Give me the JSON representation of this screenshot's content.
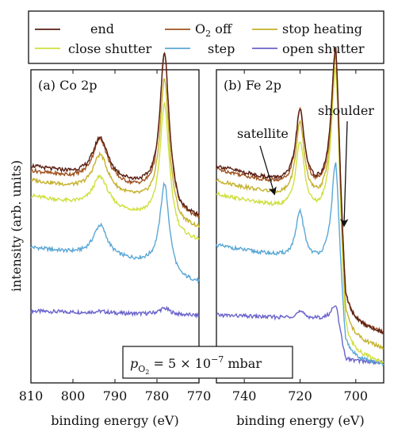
{
  "legend": {
    "placement": "top",
    "entries": [
      {
        "label": "end",
        "color": "#5a1f14"
      },
      {
        "label": "O₂ off",
        "label_sub": "2",
        "label_main": "O",
        "label_rest": " off",
        "color": "#a0521e"
      },
      {
        "label": "stop heating",
        "color": "#c5b12c"
      },
      {
        "label": "close shutter",
        "color": "#cfe03e"
      },
      {
        "label": "step",
        "color": "#5aa7d6"
      },
      {
        "label": "open shutter",
        "color": "#6a63cc"
      }
    ]
  },
  "ylabel": "intensity (arb. units)",
  "annotation": {
    "pressure_text_main": "p",
    "pressure_text_sub": "O",
    "pressure_text_sub2": "2",
    "pressure_text_rest": " = 5 × 10",
    "pressure_exp": "−7",
    "pressure_unit": " mbar"
  },
  "chart_data": [
    {
      "type": "line",
      "title": "(a) Co 2p",
      "xlabel": "binding energy (eV)",
      "xlim": [
        810,
        770
      ],
      "ylim": [
        0,
        1
      ],
      "xticks": [
        810,
        800,
        790,
        780,
        770
      ],
      "x_reversed": true,
      "series": [
        {
          "name": "end",
          "offset": 0.595,
          "peaks": [
            {
              "x": 793.5,
              "h": 0.13,
              "w": 2.2
            },
            {
              "x": 778.2,
              "h": 0.44,
              "w": 1.3
            }
          ],
          "slope": 0.004,
          "tail_drop": 0.07
        },
        {
          "name": "O₂ off",
          "offset": 0.58,
          "peaks": [
            {
              "x": 793.5,
              "h": 0.14,
              "w": 2.2
            },
            {
              "x": 778.2,
              "h": 0.45,
              "w": 1.3
            }
          ],
          "slope": 0.004,
          "tail_drop": 0.06
        },
        {
          "name": "stop heating",
          "offset": 0.55,
          "peaks": [
            {
              "x": 793.5,
              "h": 0.12,
              "w": 2.2
            },
            {
              "x": 778.2,
              "h": 0.4,
              "w": 1.3
            }
          ],
          "slope": 0.004,
          "tail_drop": 0.06
        },
        {
          "name": "close shutter",
          "offset": 0.5,
          "peaks": [
            {
              "x": 793.5,
              "h": 0.1,
              "w": 2.2
            },
            {
              "x": 778.2,
              "h": 0.37,
              "w": 1.3
            }
          ],
          "slope": 0.004,
          "tail_drop": 0.05
        },
        {
          "name": "step",
          "offset": 0.36,
          "peaks": [
            {
              "x": 793.5,
              "h": 0.1,
              "w": 2.0
            },
            {
              "x": 778.2,
              "h": 0.26,
              "w": 1.3
            }
          ],
          "slope": 0.003,
          "tail_drop": 0.04
        },
        {
          "name": "open shutter",
          "offset": 0.215,
          "peaks": [
            {
              "x": 793.5,
              "h": 0.005,
              "w": 2.0
            },
            {
              "x": 778.2,
              "h": 0.02,
              "w": 1.6
            }
          ],
          "slope": 0.0006,
          "tail_drop": 0.0
        }
      ]
    },
    {
      "type": "line",
      "title": "(b) Fe 2p",
      "xlabel": "binding energy (eV)",
      "xlim": [
        750,
        690
      ],
      "ylim": [
        0,
        1
      ],
      "xticks": [
        740,
        720,
        700
      ],
      "x_reversed": true,
      "annotations": [
        {
          "text": "satellite",
          "x": 734,
          "y": 0.79,
          "arrow_to_x": 729.5,
          "arrow_to_y": 0.6
        },
        {
          "text": "shoulder",
          "x": 708,
          "y": 0.86,
          "arrow_to_x": 704.5,
          "arrow_to_y": 0.47
        }
      ],
      "series": [
        {
          "name": "end",
          "offset": 0.555,
          "peaks": [
            {
              "x": 720.0,
              "h": 0.24,
              "w": 1.9
            },
            {
              "x": 707.2,
              "h": 0.47,
              "w": 1.9
            }
          ],
          "slope": 0.0038,
          "tail_drop": 0.4
        },
        {
          "name": "O₂ off",
          "offset": 0.545,
          "peaks": [
            {
              "x": 720.0,
              "h": 0.25,
              "w": 1.9
            },
            {
              "x": 707.2,
              "h": 0.48,
              "w": 1.9
            }
          ],
          "slope": 0.0038,
          "tail_drop": 0.39
        },
        {
          "name": "stop heating",
          "offset": 0.515,
          "peaks": [
            {
              "x": 720.0,
              "h": 0.24,
              "w": 1.9
            },
            {
              "x": 707.2,
              "h": 0.49,
              "w": 1.9
            }
          ],
          "slope": 0.0036,
          "tail_drop": 0.41
        },
        {
          "name": "close shutter",
          "offset": 0.48,
          "peaks": [
            {
              "x": 720.0,
              "h": 0.22,
              "w": 1.9
            },
            {
              "x": 707.2,
              "h": 0.49,
              "w": 1.9
            }
          ],
          "slope": 0.0034,
          "tail_drop": 0.42
        },
        {
          "name": "step",
          "offset": 0.345,
          "peaks": [
            {
              "x": 720.0,
              "h": 0.15,
              "w": 1.8
            },
            {
              "x": 707.2,
              "h": 0.33,
              "w": 1.8
            }
          ],
          "slope": 0.0026,
          "tail_drop": 0.29
        },
        {
          "name": "open shutter",
          "offset": 0.195,
          "peaks": [
            {
              "x": 720.0,
              "h": 0.02,
              "w": 2.0
            },
            {
              "x": 707.2,
              "h": 0.05,
              "w": 1.8
            }
          ],
          "slope": 0.0006,
          "tail_drop": 0.13
        }
      ]
    }
  ]
}
